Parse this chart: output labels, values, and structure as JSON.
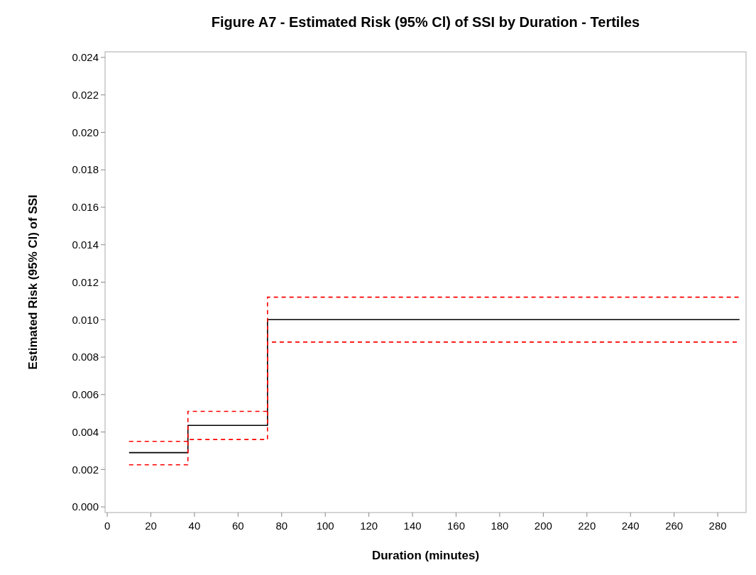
{
  "chart_data": {
    "type": "step",
    "title": "Figure A7 - Estimated Risk (95% Cl) of SSI by Duration - Tertiles",
    "xlabel": "Duration (minutes)",
    "ylabel": "Estimated Risk (95% Cl) of SSI",
    "x": [
      10,
      37,
      73.5,
      290
    ],
    "series": [
      {
        "color": "#000000",
        "line_style": "solid",
        "values": [
          0.0029,
          0.00435,
          0.01,
          0.01
        ]
      },
      {
        "color": "#ff0000",
        "line_style": "dashed",
        "values": [
          0.00225,
          0.0036,
          0.0088,
          0.0088
        ]
      },
      {
        "color": "#ff0000",
        "line_style": "dashed",
        "values": [
          0.0035,
          0.0051,
          0.0112,
          0.0112
        ]
      }
    ],
    "xlim": [
      -1,
      293
    ],
    "xticks": [
      0,
      20,
      40,
      60,
      80,
      100,
      120,
      140,
      160,
      180,
      200,
      220,
      240,
      260,
      280
    ],
    "ylim": [
      -0.0003,
      0.0243
    ],
    "yticks": [
      {
        "value": 0,
        "label": "0.000"
      },
      {
        "value": 0.002,
        "label": "0.002"
      },
      {
        "value": 0.004,
        "label": "0.004"
      },
      {
        "value": 0.006,
        "label": "0.006"
      },
      {
        "value": 0.008,
        "label": "0.008"
      },
      {
        "value": 0.01,
        "label": "0.010"
      },
      {
        "value": 0.012,
        "label": "0.012"
      },
      {
        "value": 0.014,
        "label": "0.014"
      },
      {
        "value": 0.016,
        "label": "0.016"
      },
      {
        "value": 0.018,
        "label": "0.018"
      },
      {
        "value": 0.02,
        "label": "0.020"
      },
      {
        "value": 0.022,
        "label": "0.022"
      },
      {
        "value": 0.024,
        "label": "0.024"
      }
    ],
    "grid": false
  }
}
